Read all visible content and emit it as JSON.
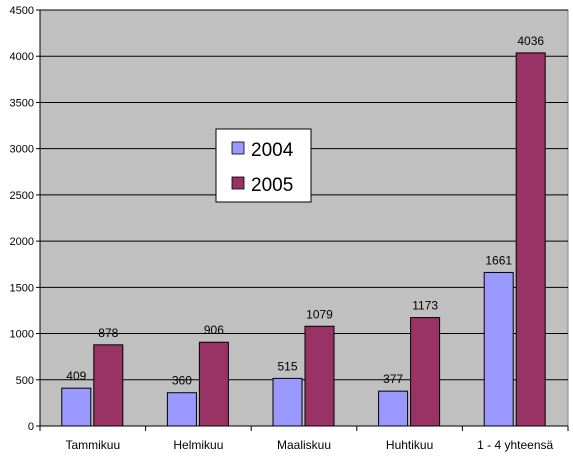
{
  "chart_data": {
    "type": "bar",
    "title": "",
    "xlabel": "",
    "ylabel": "",
    "categories": [
      "Tammikuu",
      "Helmikuu",
      "Maaliskuu",
      "Huhtikuu",
      "1 - 4 yhteensä"
    ],
    "series": [
      {
        "name": "2004",
        "values": [
          409,
          360,
          515,
          377,
          1661
        ],
        "color": "#9999ff"
      },
      {
        "name": "2005",
        "values": [
          878,
          906,
          1079,
          1173,
          4036
        ],
        "color": "#993366"
      }
    ],
    "ylim": [
      0,
      4500
    ],
    "yticks": [
      0,
      500,
      1000,
      1500,
      2000,
      2500,
      3000,
      3500,
      4000,
      4500
    ],
    "grid": true,
    "plot_background": "#c0c0c0",
    "legend_position": "center-left",
    "data_labels": true
  }
}
